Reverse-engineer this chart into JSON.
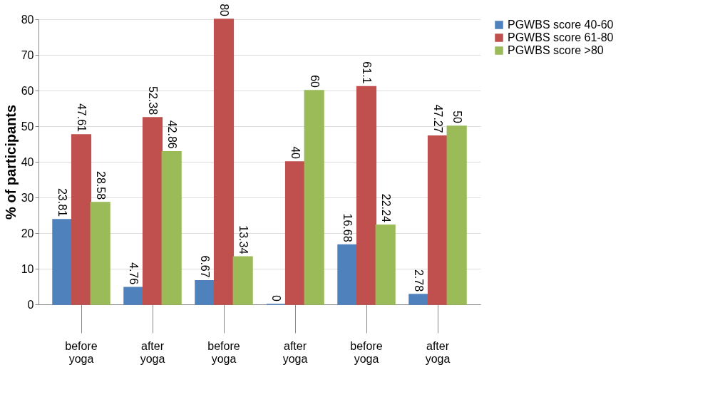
{
  "chart_data": {
    "type": "bar",
    "ylabel": "% of participants",
    "categories": [
      "before yoga",
      "after yoga",
      "before yoga",
      "after yoga",
      "before yoga",
      "after yoga"
    ],
    "series": [
      {
        "name": "PGWBS score 40-60",
        "color": "#4f81bd",
        "values": [
          23.81,
          4.76,
          6.67,
          0,
          16.68,
          2.78
        ]
      },
      {
        "name": "PGWBS score 61-80",
        "color": "#c0504d",
        "values": [
          47.61,
          52.38,
          80,
          40,
          61.1,
          47.27
        ]
      },
      {
        "name": "PGWBS score >80",
        "color": "#9bbb59",
        "values": [
          28.58,
          42.86,
          13.34,
          60,
          22.24,
          50
        ]
      }
    ],
    "ylim": [
      0,
      80
    ],
    "yticks": [
      0,
      10,
      20,
      30,
      40,
      50,
      60,
      70,
      80
    ],
    "grid": "y",
    "legend": "right",
    "data_labels": true
  }
}
